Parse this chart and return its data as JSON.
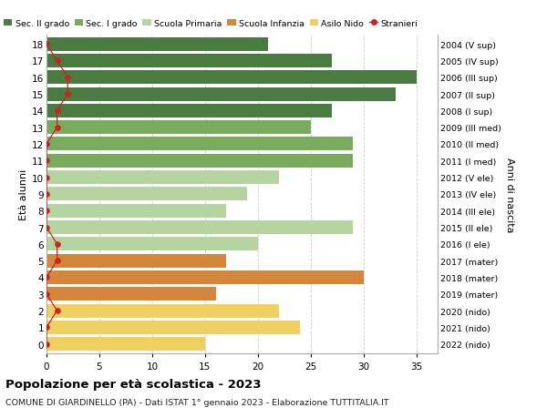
{
  "ages": [
    18,
    17,
    16,
    15,
    14,
    13,
    12,
    11,
    10,
    9,
    8,
    7,
    6,
    5,
    4,
    3,
    2,
    1,
    0
  ],
  "right_labels": [
    "2004 (V sup)",
    "2005 (IV sup)",
    "2006 (III sup)",
    "2007 (II sup)",
    "2008 (I sup)",
    "2009 (III med)",
    "2010 (II med)",
    "2011 (I med)",
    "2012 (V ele)",
    "2013 (IV ele)",
    "2014 (III ele)",
    "2015 (II ele)",
    "2016 (I ele)",
    "2017 (mater)",
    "2018 (mater)",
    "2019 (mater)",
    "2020 (nido)",
    "2021 (nido)",
    "2022 (nido)"
  ],
  "bar_values": [
    21,
    27,
    35,
    33,
    27,
    25,
    29,
    29,
    22,
    19,
    17,
    29,
    20,
    17,
    30,
    16,
    22,
    24,
    15
  ],
  "bar_colors": [
    "#4a7c41",
    "#4a7c41",
    "#4a7c41",
    "#4a7c41",
    "#4a7c41",
    "#7aaa5c",
    "#7aaa5c",
    "#7aaa5c",
    "#b5d4a0",
    "#b5d4a0",
    "#b5d4a0",
    "#b5d4a0",
    "#b5d4a0",
    "#d4863a",
    "#d4863a",
    "#d4863a",
    "#f0d060",
    "#f0d060",
    "#f0d060"
  ],
  "stranieri_x": [
    0,
    1,
    2,
    2,
    1,
    1,
    0,
    0,
    0,
    0,
    0,
    0,
    1,
    1,
    0,
    0,
    1,
    0,
    0
  ],
  "legend_labels": [
    "Sec. II grado",
    "Sec. I grado",
    "Scuola Primaria",
    "Scuola Infanzia",
    "Asilo Nido",
    "Stranieri"
  ],
  "legend_colors": [
    "#4a7c41",
    "#7aaa5c",
    "#b5d4a0",
    "#d4863a",
    "#f0d060",
    "#cc2222"
  ],
  "title": "Popolazione per età scolastica - 2023",
  "subtitle": "COMUNE DI GIARDINELLO (PA) - Dati ISTAT 1° gennaio 2023 - Elaborazione TUTTITALIA.IT",
  "ylabel_left": "Età alunni",
  "ylabel_right": "Anni di nascita",
  "xlim": [
    0,
    37
  ],
  "xticks": [
    0,
    5,
    10,
    15,
    20,
    25,
    30,
    35
  ],
  "background_color": "#ffffff",
  "grid_color": "#cccccc",
  "bar_height": 0.82
}
